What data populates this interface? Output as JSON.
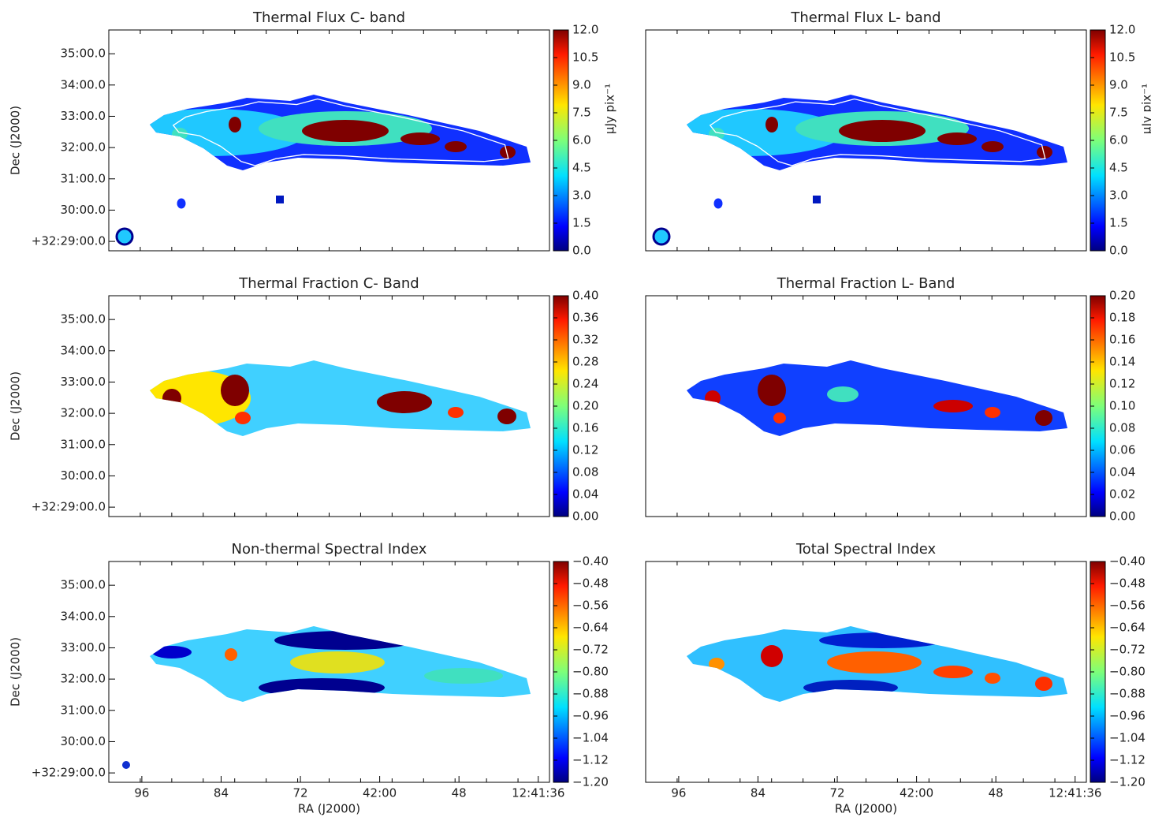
{
  "chart_data": [
    {
      "type": "image",
      "title": "Thermal Flux C- band",
      "ylabel": "Dec (J2000)",
      "colorbar_label": "μJy pix⁻¹",
      "colormap": "jet",
      "style": "flux",
      "ylim": [
        28.7,
        35.76
      ],
      "yticks": [
        {
          "value": 35,
          "label": "35:00.0"
        },
        {
          "value": 34,
          "label": "34:00.0"
        },
        {
          "value": 33,
          "label": "33:00.0"
        },
        {
          "value": 32,
          "label": "32:00.0"
        },
        {
          "value": 31,
          "label": "31:00.0"
        },
        {
          "value": 30,
          "label": "30:00.0"
        },
        {
          "value": 29,
          "label": "+32:29:00.0"
        }
      ],
      "clim": [
        0,
        12
      ],
      "cticks": [
        {
          "value": 0,
          "label": "0.0"
        },
        {
          "value": 1.5,
          "label": "1.5"
        },
        {
          "value": 3,
          "label": "3.0"
        },
        {
          "value": 4.5,
          "label": "4.5"
        },
        {
          "value": 6,
          "label": "6.0"
        },
        {
          "value": 7.5,
          "label": "7.5"
        },
        {
          "value": 9,
          "label": "9.0"
        },
        {
          "value": 10.5,
          "label": "10.5"
        },
        {
          "value": 12,
          "label": "12.0"
        }
      ]
    },
    {
      "type": "image",
      "title": "Thermal Flux L- band",
      "colorbar_label": "μJy pix⁻¹",
      "colormap": "jet",
      "style": "flux",
      "clim": [
        0,
        12
      ],
      "cticks": [
        {
          "value": 0,
          "label": "0.0"
        },
        {
          "value": 1.5,
          "label": "1.5"
        },
        {
          "value": 3,
          "label": "3.0"
        },
        {
          "value": 4.5,
          "label": "4.5"
        },
        {
          "value": 6,
          "label": "6.0"
        },
        {
          "value": 7.5,
          "label": "7.5"
        },
        {
          "value": 9,
          "label": "9.0"
        },
        {
          "value": 10.5,
          "label": "10.5"
        },
        {
          "value": 12,
          "label": "12.0"
        }
      ]
    },
    {
      "type": "image",
      "title": "Thermal Fraction C- Band",
      "ylabel": "Dec (J2000)",
      "colormap": "jet",
      "style": "fractionc",
      "ylim": [
        28.7,
        35.76
      ],
      "yticks": [
        {
          "value": 35,
          "label": "35:00.0"
        },
        {
          "value": 34,
          "label": "34:00.0"
        },
        {
          "value": 33,
          "label": "33:00.0"
        },
        {
          "value": 32,
          "label": "32:00.0"
        },
        {
          "value": 31,
          "label": "31:00.0"
        },
        {
          "value": 30,
          "label": "30:00.0"
        },
        {
          "value": 29,
          "label": "+32:29:00.0"
        }
      ],
      "clim": [
        0,
        0.4
      ],
      "cticks": [
        {
          "value": 0,
          "label": "0.00"
        },
        {
          "value": 0.04,
          "label": "0.04"
        },
        {
          "value": 0.08,
          "label": "0.08"
        },
        {
          "value": 0.12,
          "label": "0.12"
        },
        {
          "value": 0.16,
          "label": "0.16"
        },
        {
          "value": 0.2,
          "label": "0.20"
        },
        {
          "value": 0.24,
          "label": "0.24"
        },
        {
          "value": 0.28,
          "label": "0.28"
        },
        {
          "value": 0.32,
          "label": "0.32"
        },
        {
          "value": 0.36,
          "label": "0.36"
        },
        {
          "value": 0.4,
          "label": "0.40"
        }
      ]
    },
    {
      "type": "image",
      "title": "Thermal Fraction L- Band",
      "colormap": "jet",
      "style": "fractionl",
      "clim": [
        0,
        0.2
      ],
      "cticks": [
        {
          "value": 0,
          "label": "0.00"
        },
        {
          "value": 0.02,
          "label": "0.02"
        },
        {
          "value": 0.04,
          "label": "0.04"
        },
        {
          "value": 0.06,
          "label": "0.06"
        },
        {
          "value": 0.08,
          "label": "0.08"
        },
        {
          "value": 0.1,
          "label": "0.10"
        },
        {
          "value": 0.12,
          "label": "0.12"
        },
        {
          "value": 0.14,
          "label": "0.14"
        },
        {
          "value": 0.16,
          "label": "0.16"
        },
        {
          "value": 0.18,
          "label": "0.18"
        },
        {
          "value": 0.2,
          "label": "0.20"
        }
      ]
    },
    {
      "type": "image",
      "title": "Non-thermal Spectral Index",
      "ylabel": "Dec (J2000)",
      "xlabel": "RA (J2000)",
      "colormap": "jet",
      "style": "nonthermal",
      "ylim": [
        28.7,
        35.76
      ],
      "yticks": [
        {
          "value": 35,
          "label": "35:00.0"
        },
        {
          "value": 34,
          "label": "34:00.0"
        },
        {
          "value": 33,
          "label": "33:00.0"
        },
        {
          "value": 32,
          "label": "32:00.0"
        },
        {
          "value": 31,
          "label": "31:00.0"
        },
        {
          "value": 30,
          "label": "30:00.0"
        },
        {
          "value": 29,
          "label": "+32:29:00.0"
        }
      ],
      "xlim": [
        101,
        34.3
      ],
      "xticks": [
        96,
        84,
        72,
        {
          "value": 60,
          "label": "42:00"
        },
        48,
        {
          "value": 36,
          "label": "12:41:36"
        }
      ],
      "clim": [
        -1.2,
        -0.4
      ],
      "cticks": [
        {
          "value": -1.2,
          "label": "−1.20"
        },
        {
          "value": -1.12,
          "label": "−1.12"
        },
        {
          "value": -1.04,
          "label": "−1.04"
        },
        {
          "value": -0.96,
          "label": "−0.96"
        },
        {
          "value": -0.88,
          "label": "−0.88"
        },
        {
          "value": -0.8,
          "label": "−0.80"
        },
        {
          "value": -0.72,
          "label": "−0.72"
        },
        {
          "value": -0.64,
          "label": "−0.64"
        },
        {
          "value": -0.56,
          "label": "−0.56"
        },
        {
          "value": -0.48,
          "label": "−0.48"
        },
        {
          "value": -0.4,
          "label": "−0.40"
        }
      ]
    },
    {
      "type": "image",
      "title": "Total Spectral Index",
      "xlabel": "RA (J2000)",
      "colormap": "jet",
      "style": "total",
      "xlim": [
        101,
        34.3
      ],
      "xticks": [
        96,
        84,
        72,
        {
          "value": 60,
          "label": "42:00"
        },
        48,
        {
          "value": 36,
          "label": "12:41:36"
        }
      ],
      "clim": [
        -1.2,
        -0.4
      ],
      "cticks": [
        {
          "value": -1.2,
          "label": "−1.20"
        },
        {
          "value": -1.12,
          "label": "−1.12"
        },
        {
          "value": -1.04,
          "label": "−1.04"
        },
        {
          "value": -0.96,
          "label": "−0.96"
        },
        {
          "value": -0.88,
          "label": "−0.88"
        },
        {
          "value": -0.8,
          "label": "−0.80"
        },
        {
          "value": -0.72,
          "label": "−0.72"
        },
        {
          "value": -0.64,
          "label": "−0.64"
        },
        {
          "value": -0.56,
          "label": "−0.56"
        },
        {
          "value": -0.48,
          "label": "−0.48"
        },
        {
          "value": -0.4,
          "label": "−0.40"
        }
      ]
    }
  ]
}
